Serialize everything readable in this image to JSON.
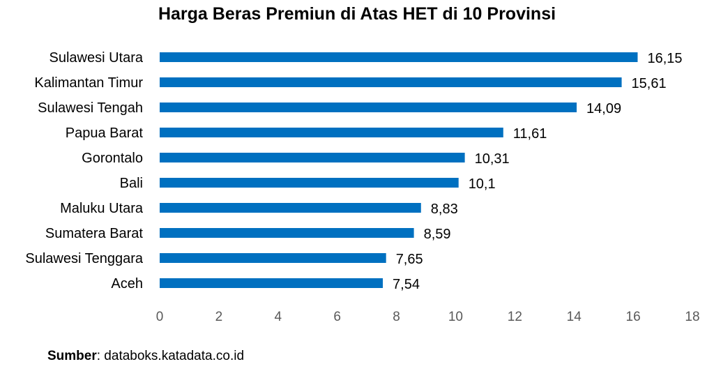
{
  "source": {
    "label": "Sumber",
    "text": ": databoks.katadata.co.id"
  },
  "chart_data": {
    "type": "bar",
    "orientation": "horizontal",
    "title": "Harga Beras Premiun di Atas HET di 10 Provinsi",
    "categories": [
      "Sulawesi Utara",
      "Kalimantan Timur",
      "Sulawesi Tengah",
      "Papua Barat",
      "Gorontalo",
      "Bali",
      "Maluku Utara",
      "Sumatera Barat",
      "Sulawesi Tenggara",
      "Aceh"
    ],
    "values": [
      16.15,
      15.61,
      14.09,
      11.61,
      10.31,
      10.1,
      8.83,
      8.59,
      7.65,
      7.54
    ],
    "value_labels": [
      "16,15",
      "15,61",
      "14,09",
      "11,61",
      "10,31",
      "10,1",
      "8,83",
      "8,59",
      "7,65",
      "7,54"
    ],
    "xlim": [
      0,
      18
    ],
    "xticks": [
      0,
      2,
      4,
      6,
      8,
      10,
      12,
      14,
      16,
      18
    ],
    "grid": false,
    "bar_color": "#0070C0",
    "xlabel": "",
    "ylabel": ""
  }
}
